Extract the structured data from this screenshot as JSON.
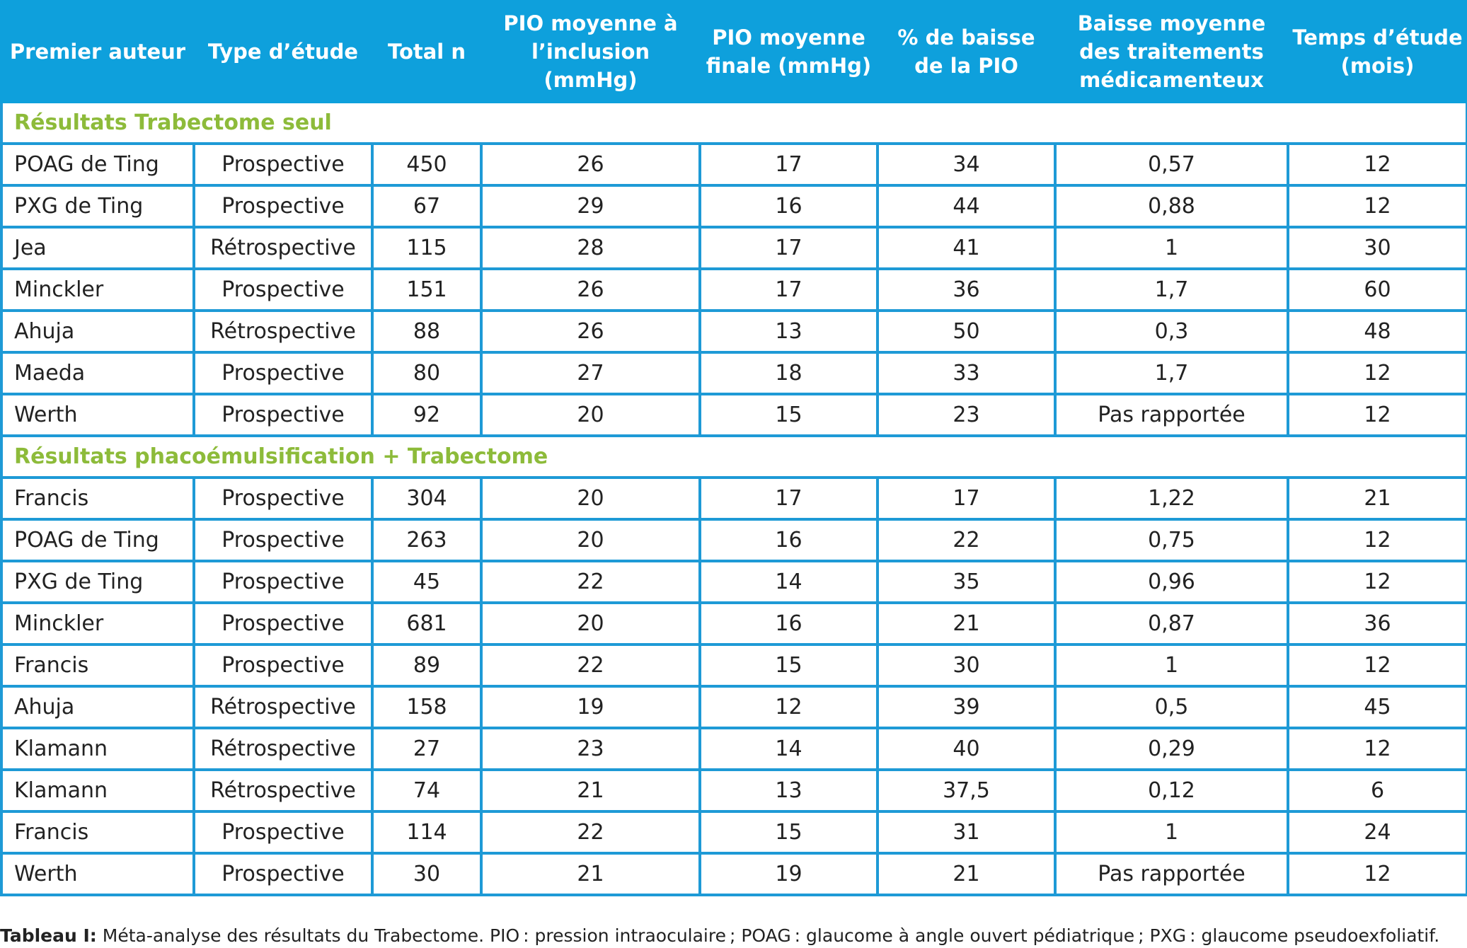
{
  "table": {
    "headers": [
      "Premier auteur",
      "Type d’étude",
      "Total n",
      "PIO moyenne à\nl’inclusion (mmHg)",
      "PIO moyenne\nfinale (mmHg)",
      "% de baisse\nde la PIO",
      "Baisse moyenne\ndes traitements\nmédicamenteux",
      "Temps d’étude\n(mois)"
    ],
    "sections": [
      {
        "title": "Résultats Trabectome seul",
        "rows": [
          [
            "POAG de Ting",
            "Prospective",
            "450",
            "26",
            "17",
            "34",
            "0,57",
            "12"
          ],
          [
            "PXG de Ting",
            "Prospective",
            "67",
            "29",
            "16",
            "44",
            "0,88",
            "12"
          ],
          [
            "Jea",
            "Rétrospective",
            "115",
            "28",
            "17",
            "41",
            "1",
            "30"
          ],
          [
            "Minckler",
            "Prospective",
            "151",
            "26",
            "17",
            "36",
            "1,7",
            "60"
          ],
          [
            "Ahuja",
            "Rétrospective",
            "88",
            "26",
            "13",
            "50",
            "0,3",
            "48"
          ],
          [
            "Maeda",
            "Prospective",
            "80",
            "27",
            "18",
            "33",
            "1,7",
            "12"
          ],
          [
            "Werth",
            "Prospective",
            "92",
            "20",
            "15",
            "23",
            "Pas rapportée",
            "12"
          ]
        ]
      },
      {
        "title": "Résultats phacoémulsification + Trabectome",
        "rows": [
          [
            "Francis",
            "Prospective",
            "304",
            "20",
            "17",
            "17",
            "1,22",
            "21"
          ],
          [
            "POAG de Ting",
            "Prospective",
            "263",
            "20",
            "16",
            "22",
            "0,75",
            "12"
          ],
          [
            "PXG de Ting",
            "Prospective",
            "45",
            "22",
            "14",
            "35",
            "0,96",
            "12"
          ],
          [
            "Minckler",
            "Prospective",
            "681",
            "20",
            "16",
            "21",
            "0,87",
            "36"
          ],
          [
            "Francis",
            "Prospective",
            "89",
            "22",
            "15",
            "30",
            "1",
            "12"
          ],
          [
            "Ahuja",
            "Rétrospective",
            "158",
            "19",
            "12",
            "39",
            "0,5",
            "45"
          ],
          [
            "Klamann",
            "Rétrospective",
            "27",
            "23",
            "14",
            "40",
            "0,29",
            "12"
          ],
          [
            "Klamann",
            "Rétrospective",
            "74",
            "21",
            "13",
            "37,5",
            "0,12",
            "6"
          ],
          [
            "Francis",
            "Prospective",
            "114",
            "22",
            "15",
            "31",
            "1",
            "24"
          ],
          [
            "Werth",
            "Prospective",
            "30",
            "21",
            "19",
            "21",
            "Pas rapportée",
            "12"
          ]
        ]
      }
    ]
  },
  "caption": {
    "label": "Tableau I:",
    "text": " Méta-analyse des résultats du Trabectome. PIO : pression intraoculaire ; POAG : glaucome à angle ouvert pédiatrique ; PXG : glaucome pseudoexfoliatif."
  },
  "colors": {
    "header_bg": "#0ea0dc",
    "border": "#1e9ad6",
    "section_text": "#8dbb3a"
  }
}
